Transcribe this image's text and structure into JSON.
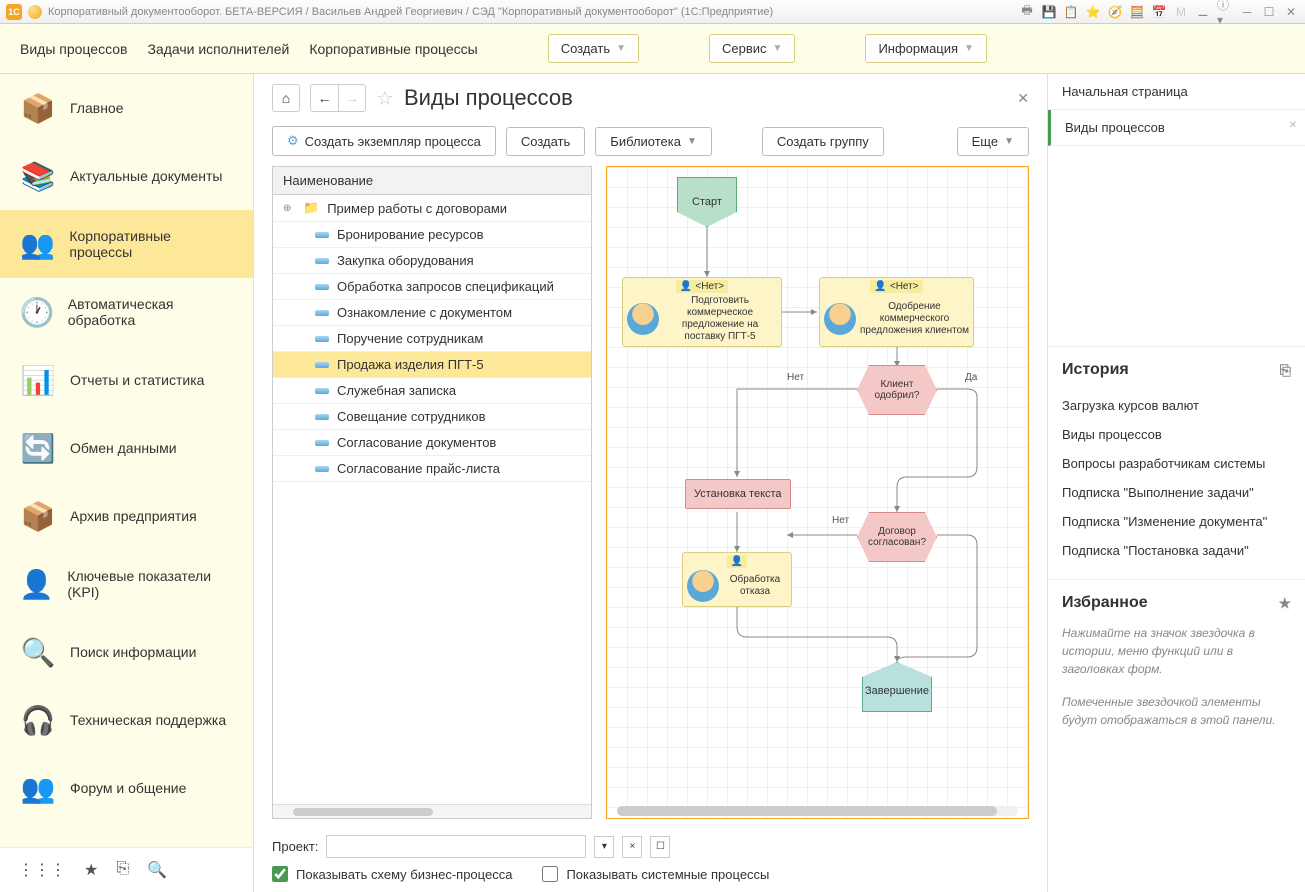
{
  "titlebar": {
    "title": "Корпоративный документооборот. БЕТА-ВЕРСИЯ / Васильев Андрей Георгиевич / СЭД \"Корпоративный документооборот\"  (1С:Предприятие)"
  },
  "menubar": {
    "links": [
      "Виды процессов",
      "Задачи исполнителей",
      "Корпоративные процессы"
    ],
    "buttons": [
      "Создать",
      "Сервис",
      "Информация"
    ]
  },
  "sidebar": {
    "items": [
      {
        "label": "Главное",
        "icon": "📦"
      },
      {
        "label": "Актуальные документы",
        "icon": "📚"
      },
      {
        "label": "Корпоративные процессы",
        "icon": "👥",
        "active": true
      },
      {
        "label": "Автоматическая обработка",
        "icon": "🕐"
      },
      {
        "label": "Отчеты и статистика",
        "icon": "📊"
      },
      {
        "label": "Обмен данными",
        "icon": "🔄"
      },
      {
        "label": "Архив предприятия",
        "icon": "📦"
      },
      {
        "label": "Ключевые показатели (KPI)",
        "icon": "👤"
      },
      {
        "label": "Поиск информации",
        "icon": "🔍"
      },
      {
        "label": "Техническая поддержка",
        "icon": "🎧"
      },
      {
        "label": "Форум и общение",
        "icon": "👥"
      }
    ]
  },
  "content": {
    "title": "Виды процессов",
    "toolbar": {
      "create_instance": "Создать экземпляр процесса",
      "create": "Создать",
      "library": "Библиотека",
      "create_group": "Создать группу",
      "more": "Еще"
    },
    "tree": {
      "header": "Наименование",
      "rows": [
        {
          "label": "Пример работы с договорами",
          "folder": true
        },
        {
          "label": "Бронирование ресурсов"
        },
        {
          "label": "Закупка оборудования"
        },
        {
          "label": "Обработка запросов спецификаций"
        },
        {
          "label": "Ознакомление с документом"
        },
        {
          "label": "Поручение сотрудникам"
        },
        {
          "label": "Продажа изделия ПГТ-5",
          "selected": true
        },
        {
          "label": "Служебная записка"
        },
        {
          "label": "Совещание сотрудников"
        },
        {
          "label": "Согласование документов"
        },
        {
          "label": "Согласование прайс-листа"
        }
      ]
    },
    "diagram": {
      "start": "Старт",
      "task1_header": "<Нет>",
      "task1_text": "Подготовить коммерческое предложение на поставку ПГТ-5",
      "task2_header": "<Нет>",
      "task2_text": "Одобрение коммерческого предложения клиентом",
      "decision1": "Клиент одобрил?",
      "box1": "Установка текста",
      "decision2": "Договор согласован?",
      "task3_text": "Обработка отказа",
      "end": "Завершение",
      "yes": "Да",
      "no": "Нет",
      "colors": {
        "start_bg": "#b8e0c8",
        "start_border": "#5aaa7a",
        "task_bg": "#fdf5c8",
        "task_border": "#d8cd80",
        "decision_bg": "#f5c8c8",
        "decision_border": "#d88a8a",
        "end_bg": "#b8e0dc",
        "end_border": "#5aaa9a",
        "line": "#888888"
      }
    },
    "bottom": {
      "project_label": "Проект:",
      "check1": "Показывать схему бизнес-процесса",
      "check2": "Показывать системные процессы"
    }
  },
  "rightpanel": {
    "tabs": [
      {
        "label": "Начальная страница"
      },
      {
        "label": "Виды процессов",
        "active": true,
        "closable": true
      }
    ],
    "history": {
      "title": "История",
      "items": [
        "Загрузка курсов валют",
        "Виды процессов",
        "Вопросы разработчикам системы",
        "Подписка \"Выполнение задачи\"",
        "Подписка \"Изменение документа\"",
        "Подписка \"Постановка задачи\""
      ]
    },
    "favorites": {
      "title": "Избранное",
      "hint1": "Нажимайте на значок звездочка в истории, меню функций или в заголовках форм.",
      "hint2": "Помеченные звездочкой элементы будут отображаться в этой панели."
    }
  }
}
